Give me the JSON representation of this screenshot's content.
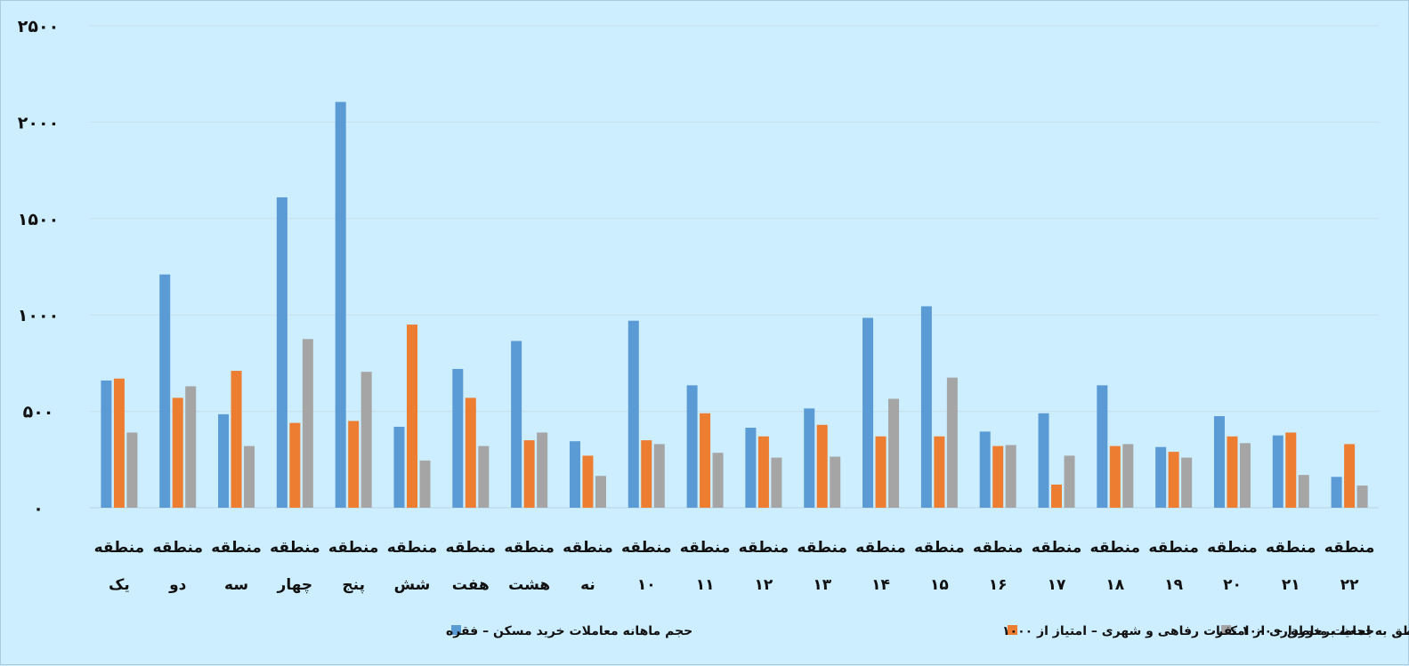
{
  "chart_data": {
    "type": "bar",
    "ylim": [
      0,
      2500
    ],
    "yticks": [
      "۰",
      "۵۰۰",
      "۱۰۰۰",
      "۱۵۰۰",
      "۲۰۰۰",
      "۲۵۰۰"
    ],
    "ytick_values": [
      0,
      500,
      1000,
      1500,
      2000,
      2500
    ],
    "grid": true,
    "legend_position": "bottom",
    "categories": [
      [
        "منطقه",
        "یک"
      ],
      [
        "منطقه",
        "دو"
      ],
      [
        "منطقه",
        "سه"
      ],
      [
        "منطقه",
        "چهار"
      ],
      [
        "منطقه",
        "پنج"
      ],
      [
        "منطقه",
        "شش"
      ],
      [
        "منطقه",
        "هفت"
      ],
      [
        "منطقه",
        "هشت"
      ],
      [
        "منطقه",
        "نه"
      ],
      [
        "منطقه",
        "۱۰"
      ],
      [
        "منطقه",
        "۱۱"
      ],
      [
        "منطقه",
        "۱۲"
      ],
      [
        "منطقه",
        "۱۳"
      ],
      [
        "منطقه",
        "۱۴"
      ],
      [
        "منطقه",
        "۱۵"
      ],
      [
        "منطقه",
        "۱۶"
      ],
      [
        "منطقه",
        "۱۷"
      ],
      [
        "منطقه",
        "۱۸"
      ],
      [
        "منطقه",
        "۱۹"
      ],
      [
        "منطقه",
        "۲۰"
      ],
      [
        "منطقه",
        "۲۱"
      ],
      [
        "منطقه",
        "۲۲"
      ]
    ],
    "series": [
      {
        "name": "حجم ماهانه معاملات خرید مسکن – فقره",
        "color": "#5b9bd5",
        "values": [
          660,
          1210,
          485,
          1610,
          2105,
          420,
          720,
          865,
          345,
          970,
          635,
          415,
          515,
          985,
          1045,
          395,
          490,
          635,
          315,
          475,
          375,
          160
        ]
      },
      {
        "name": "امتیاز مناطق به لحاظ برخورداری از امکانات رفاهی و شهری – امتیاز از ۱۰۰۰",
        "color": "#ed7d31",
        "values": [
          670,
          570,
          710,
          440,
          450,
          950,
          570,
          350,
          270,
          350,
          490,
          370,
          430,
          370,
          370,
          320,
          120,
          320,
          290,
          370,
          390,
          330
        ]
      },
      {
        "name": "جمعیت مناطق – ۱۰۰۰ نفر",
        "color": "#a5a5a5",
        "values": [
          390,
          630,
          320,
          875,
          705,
          245,
          320,
          390,
          165,
          330,
          285,
          260,
          265,
          565,
          675,
          325,
          270,
          330,
          260,
          335,
          170,
          115
        ]
      }
    ]
  }
}
